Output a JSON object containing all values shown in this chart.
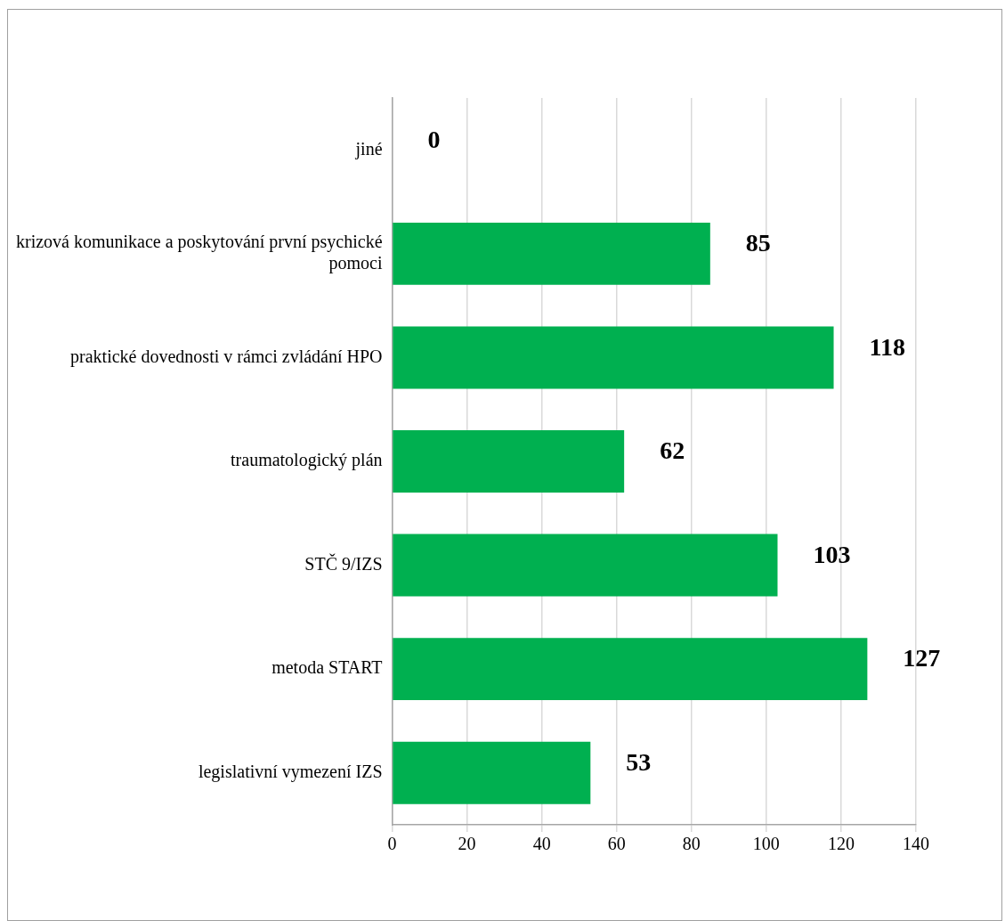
{
  "chart_data": {
    "type": "bar",
    "orientation": "horizontal",
    "categories": [
      "jiné",
      "krizová komunikace a poskytování první psychické pomoci",
      "praktické dovednosti v rámci zvládání HPO",
      "traumatologický plán",
      "STČ 9/IZS",
      "metoda START",
      "legislativní vymezení IZS"
    ],
    "values": [
      0,
      85,
      118,
      62,
      103,
      127,
      53
    ],
    "color": "#00b050",
    "xlim": [
      0,
      140
    ],
    "xticks": [
      0,
      20,
      40,
      60,
      80,
      100,
      120,
      140
    ],
    "grid": "x",
    "data_labels": true,
    "legend": false
  }
}
